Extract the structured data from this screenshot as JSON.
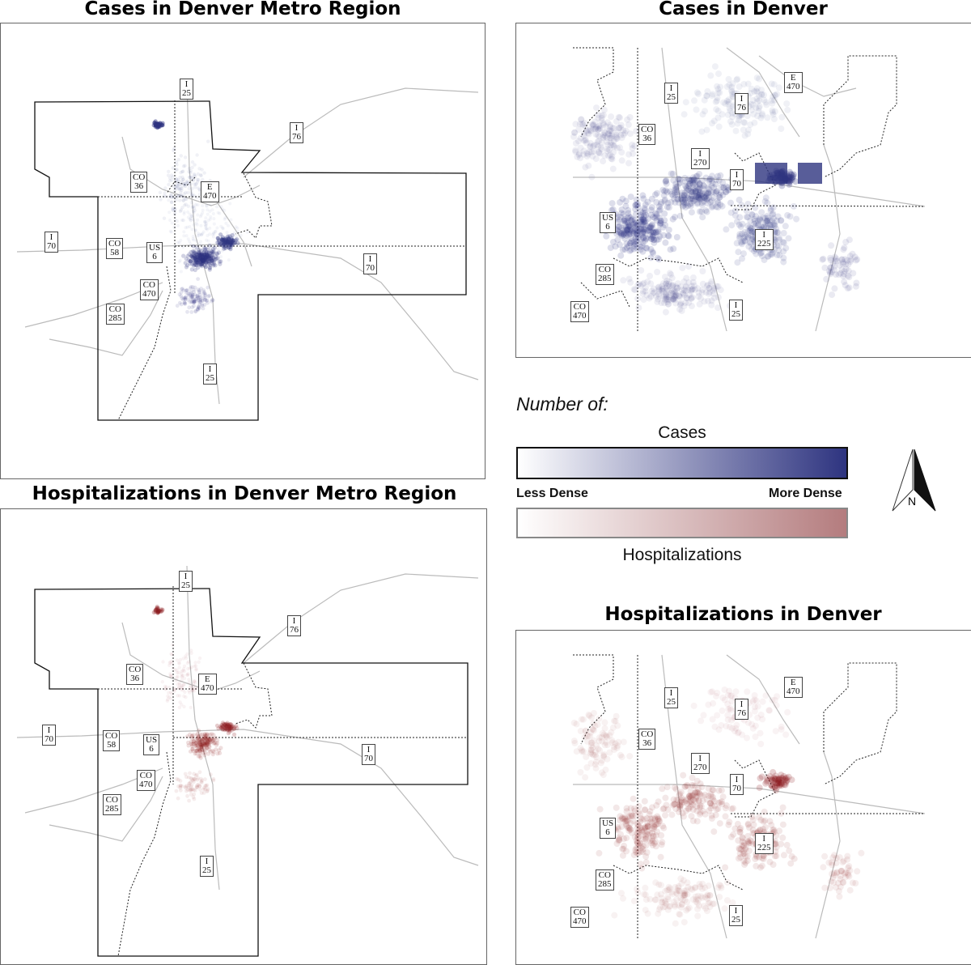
{
  "panels": {
    "metro_cases": {
      "title": "Cases in Denver Metro Region",
      "color": "#2e3480"
    },
    "denver_cases": {
      "title": "Cases in Denver",
      "color": "#2e3480"
    },
    "metro_hosp": {
      "title": "Hospitalizations in Denver Metro Region",
      "color": "#8c1a1e"
    },
    "denver_hosp": {
      "title": "Hospitalizations in Denver",
      "color": "#8c1a1e"
    }
  },
  "metro_labels": {
    "i25_top": "I\n25",
    "i76": "I\n76",
    "co36": "CO\n36",
    "e470": "E\n470",
    "i70_left": "I\n70",
    "co58": "CO\n58",
    "us6": "US\n6",
    "i70_right": "I\n70",
    "co470": "CO\n470",
    "co285": "CO\n285",
    "i25_bottom": "I\n25"
  },
  "denver_labels": {
    "i25_top": "I\n25",
    "e470": "E\n470",
    "i76": "I\n76",
    "co36": "CO\n36",
    "i270": "I\n270",
    "i70": "I\n70",
    "us6": "US\n6",
    "i225": "I\n225",
    "co285": "CO\n285",
    "co470": "CO\n470",
    "i25_bottom": "I\n25"
  },
  "legend": {
    "heading": "Number of:",
    "cases_label": "Cases",
    "hosp_label": "Hospitalizations",
    "less": "Less Dense",
    "more": "More Dense",
    "cases_color": "#2e3480",
    "hosp_color": "#b47c7e"
  },
  "north_arrow": {
    "label": "N",
    "icon": "north-arrow-icon"
  }
}
